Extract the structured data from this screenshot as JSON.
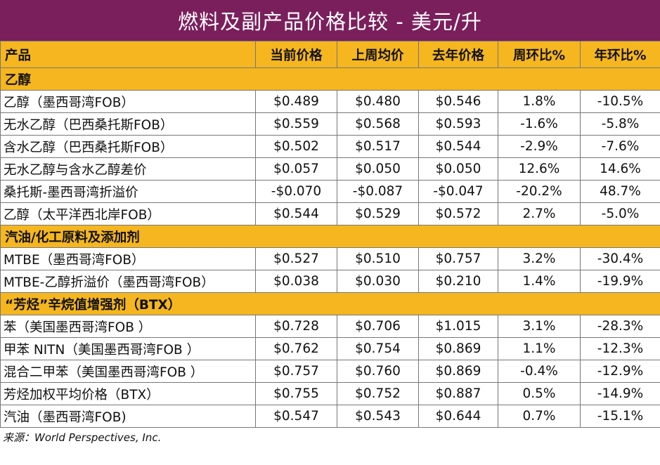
{
  "title": "燃料及副产品价格比较 - 美元/升",
  "headers": [
    "产品",
    "当前价格",
    "上周均价",
    "去年价格",
    "周环比%",
    "年环比%"
  ],
  "sections": [
    {
      "name": "乙醇",
      "rows": [
        [
          "乙醇（墨西哥湾FOB）",
          "$0.489",
          "$0.480",
          "$0.546",
          "1.8%",
          "-10.5%"
        ],
        [
          "无水乙醇（巴西桑托斯FOB）",
          "$0.559",
          "$0.568",
          "$0.593",
          "-1.6%",
          "-5.8%"
        ],
        [
          "含水乙醇（巴西桑托斯FOB）",
          "$0.502",
          "$0.517",
          "$0.544",
          "-2.9%",
          "-7.6%"
        ],
        [
          "无水乙醇与含水乙醇差价",
          "$0.057",
          "$0.050",
          "$0.050",
          "12.6%",
          "14.6%"
        ],
        [
          "桑托斯-墨西哥湾折溢价",
          "-$0.070",
          "-$0.087",
          "-$0.047",
          "-20.2%",
          "48.7%"
        ],
        [
          "乙醇（太平洋西北岸FOB）",
          "$0.544",
          "$0.529",
          "$0.572",
          "2.7%",
          "-5.0%"
        ]
      ]
    },
    {
      "name": "汽油/化工原料及添加剂",
      "rows": [
        [
          "MTBE（墨西哥湾FOB）",
          "$0.527",
          "$0.510",
          "$0.757",
          "3.2%",
          "-30.4%"
        ],
        [
          "MTBE-乙醇折溢价（墨西哥湾FOB）",
          "$0.038",
          "$0.030",
          "$0.210",
          "1.4%",
          "-19.9%"
        ]
      ]
    },
    {
      "name": "“芳烃”辛烷值增强剂（BTX）",
      "rows": [
        [
          "苯（美国墨西哥湾FOB ）",
          "$0.728",
          "$0.706",
          "$1.015",
          "3.1%",
          "-28.3%"
        ],
        [
          "甲苯 NITN（美国墨西哥湾FOB ）",
          "$0.762",
          "$0.754",
          "$0.869",
          "1.1%",
          "-12.3%"
        ],
        [
          "混合二甲苯（美国墨西哥湾FOB ）",
          "$0.757",
          "$0.760",
          "$0.869",
          "-0.4%",
          "-12.9%"
        ],
        [
          "芳烃加权平均价格（BTX）",
          "$0.755",
          "$0.752",
          "$0.887",
          "0.5%",
          "-14.9%"
        ],
        [
          "汽油（墨西哥湾FOB)",
          "$0.547",
          "$0.543",
          "$0.644",
          "0.7%",
          "-15.1%"
        ]
      ]
    }
  ],
  "source": "来源：World Perspectives, Inc."
}
